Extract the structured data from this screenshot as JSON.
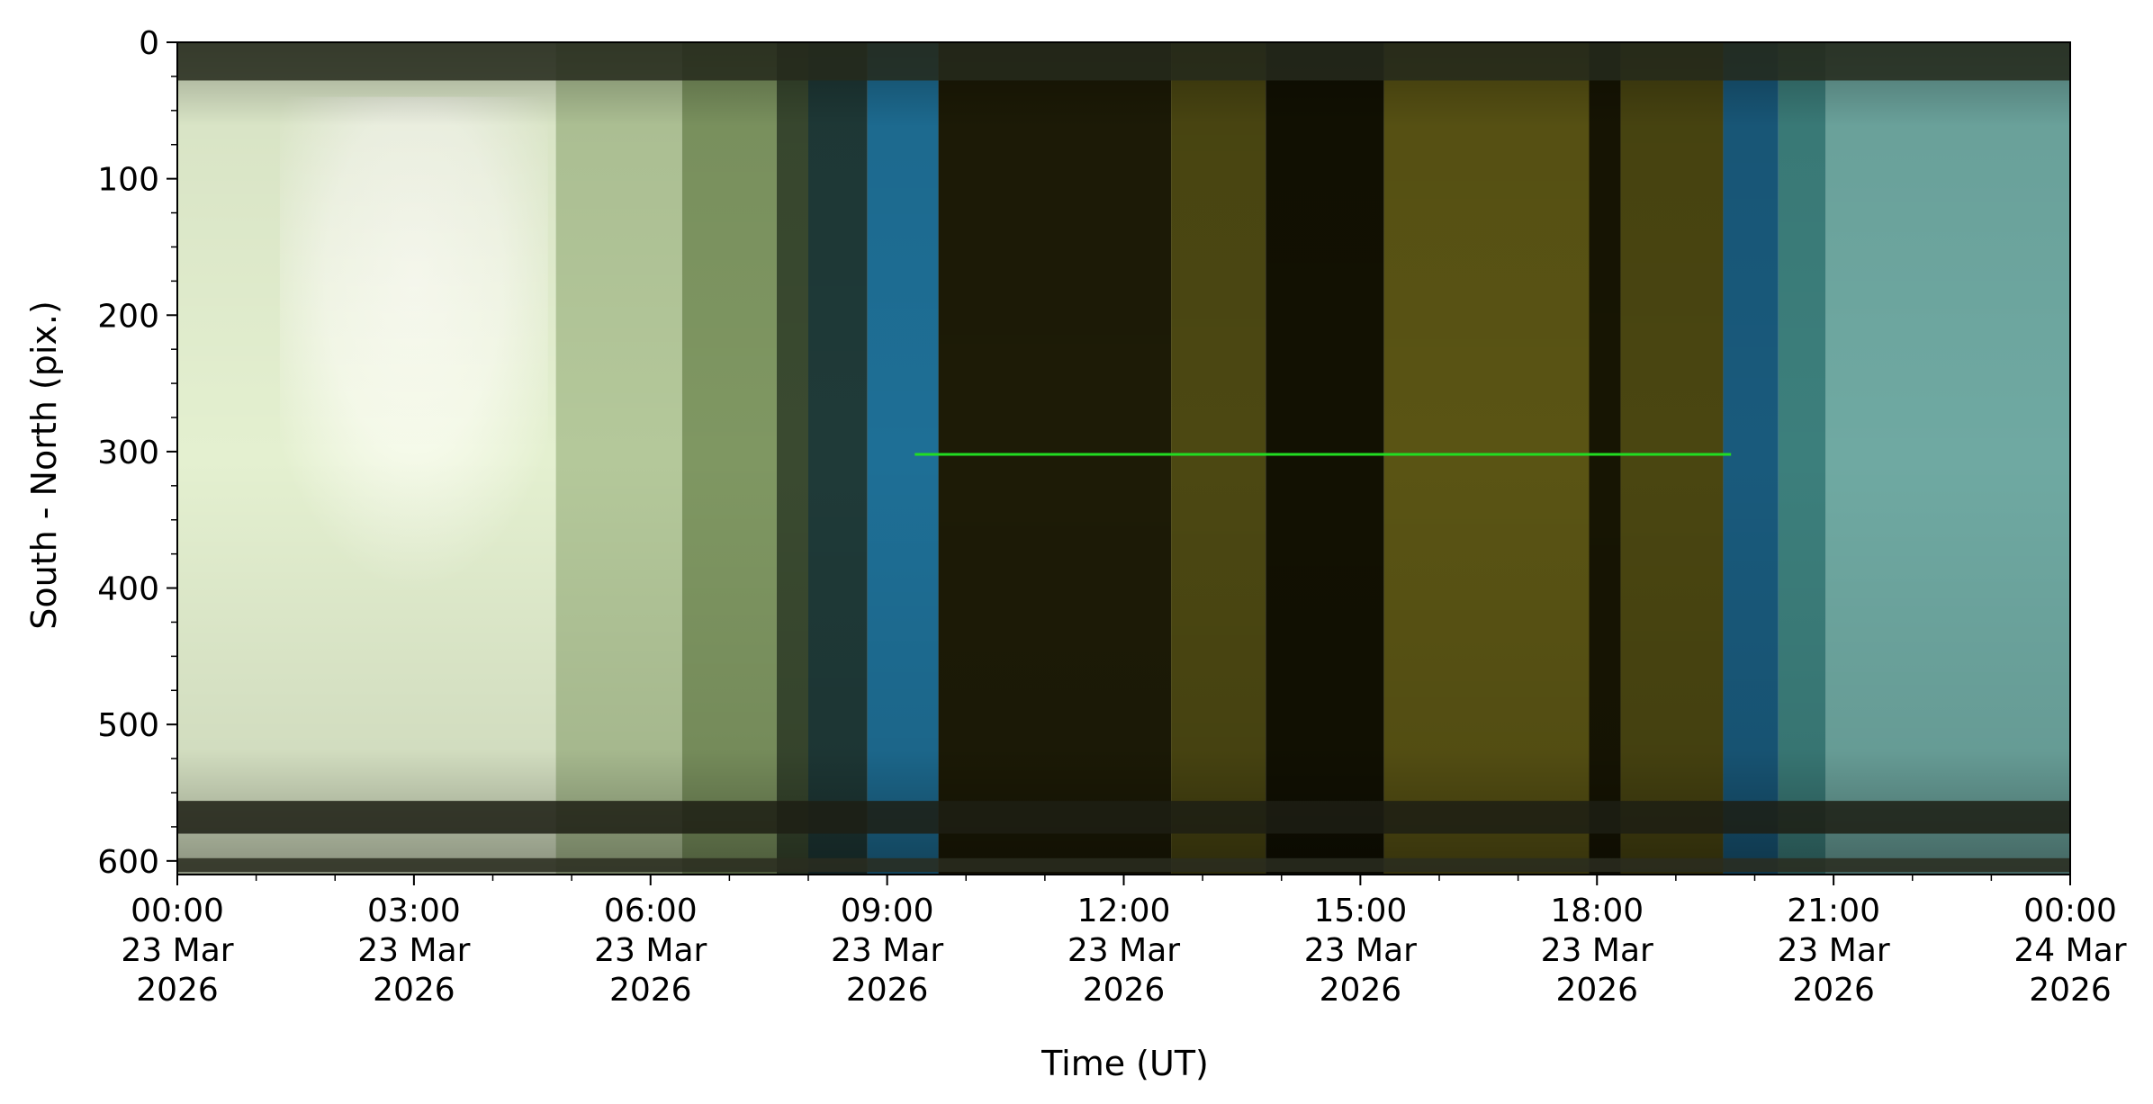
{
  "chart_data": {
    "type": "heatmap",
    "title": "",
    "xlabel": "Time (UT)",
    "ylabel": "South - North (pix.)",
    "x_range_hours": [
      0,
      24
    ],
    "ylim": [
      610,
      0
    ],
    "y_ticks": [
      0,
      100,
      200,
      300,
      400,
      500,
      600
    ],
    "x_ticks": [
      {
        "hour": 0,
        "time": "00:00",
        "day": "23 Mar",
        "year": "2026"
      },
      {
        "hour": 3,
        "time": "03:00",
        "day": "23 Mar",
        "year": "2026"
      },
      {
        "hour": 6,
        "time": "06:00",
        "day": "23 Mar",
        "year": "2026"
      },
      {
        "hour": 9,
        "time": "09:00",
        "day": "23 Mar",
        "year": "2026"
      },
      {
        "hour": 12,
        "time": "12:00",
        "day": "23 Mar",
        "year": "2026"
      },
      {
        "hour": 15,
        "time": "15:00",
        "day": "23 Mar",
        "year": "2026"
      },
      {
        "hour": 18,
        "time": "18:00",
        "day": "23 Mar",
        "year": "2026"
      },
      {
        "hour": 21,
        "time": "21:00",
        "day": "23 Mar",
        "year": "2026"
      },
      {
        "hour": 24,
        "time": "00:00",
        "day": "24 Mar",
        "year": "2026"
      }
    ],
    "time_segments": [
      {
        "start": 0.0,
        "end": 4.8,
        "color": "#e4f0d0"
      },
      {
        "start": 4.8,
        "end": 6.4,
        "color": "#b4c89a"
      },
      {
        "start": 6.4,
        "end": 7.6,
        "color": "#7f9762"
      },
      {
        "start": 7.6,
        "end": 8.0,
        "color": "#3a4a30"
      },
      {
        "start": 8.0,
        "end": 8.75,
        "color": "#1f3a38"
      },
      {
        "start": 8.75,
        "end": 9.65,
        "color": "#1e6f96"
      },
      {
        "start": 9.65,
        "end": 12.6,
        "color": "#1d1b06"
      },
      {
        "start": 12.6,
        "end": 13.8,
        "color": "#4c4812"
      },
      {
        "start": 13.8,
        "end": 15.3,
        "color": "#121102"
      },
      {
        "start": 15.3,
        "end": 17.9,
        "color": "#5a5414"
      },
      {
        "start": 17.9,
        "end": 18.3,
        "color": "#171503"
      },
      {
        "start": 18.3,
        "end": 19.6,
        "color": "#4a4611"
      },
      {
        "start": 19.6,
        "end": 20.3,
        "color": "#195a7c"
      },
      {
        "start": 20.3,
        "end": 20.9,
        "color": "#3c7f7c"
      },
      {
        "start": 20.9,
        "end": 24.0,
        "color": "#6fa9a2"
      }
    ],
    "bright_region": {
      "start": 1.3,
      "end": 4.7,
      "y_start": 40,
      "y_end": 420,
      "color": "#fbfdf2"
    },
    "horizontal_bands": [
      {
        "y_start": 0,
        "y_end": 28,
        "color": "#262a1c"
      },
      {
        "y_start": 556,
        "y_end": 580,
        "color": "#1d1f14"
      },
      {
        "y_start": 598,
        "y_end": 608,
        "color": "#2a2d20"
      }
    ],
    "green_line": {
      "y": 302,
      "x_start": 9.35,
      "x_end": 19.7,
      "color": "#22dd22"
    },
    "colors": {
      "axis": "#000000",
      "background": "#ffffff"
    }
  }
}
